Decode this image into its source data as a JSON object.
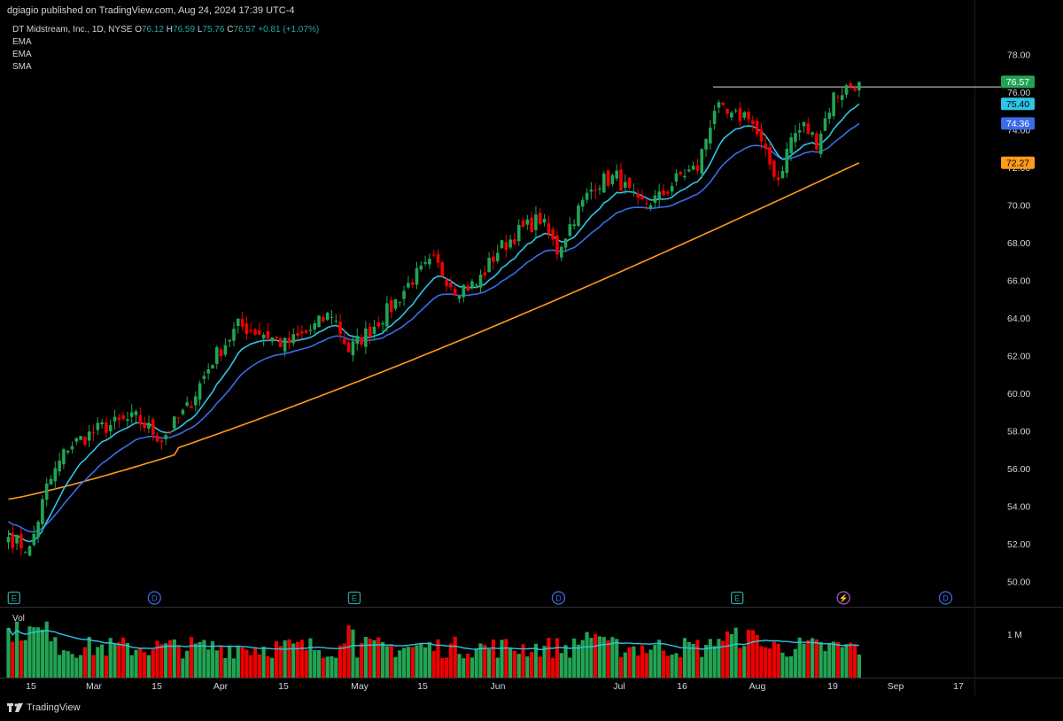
{
  "header": {
    "publisher": "dgiagio published on TradingView.com, Aug 24, 2024 17:39 UTC-4"
  },
  "legend": {
    "symbol": "DT Midstream, Inc., 1D, NYSE",
    "open_label": "O",
    "open": "76.12",
    "high_label": "H",
    "high": "76.59",
    "low_label": "L",
    "low": "75.76",
    "close_label": "C",
    "close": "76.57",
    "change": "+0.81 (+1.07%)",
    "indicators": [
      "EMA",
      "EMA",
      "SMA"
    ]
  },
  "volume_pane": {
    "label": "Vol",
    "scale_label": "1 M"
  },
  "footer": {
    "brand": "TradingView"
  },
  "colors": {
    "up": "#22a454",
    "down": "#f00000",
    "ema_fast": "#2ec4e6",
    "ema_slow": "#3a6be8",
    "sma": "#ff9b1a",
    "vol_ma": "#2ec4e6",
    "grid_text": "#d1d4dc",
    "price_tag": "#22a454"
  },
  "price_tags": [
    {
      "value": "76.57",
      "color": "#22a454"
    },
    {
      "value": "75.40",
      "color": "#2ec4e6"
    },
    {
      "value": "74.36",
      "color": "#3a6be8"
    },
    {
      "value": "72.27",
      "color": "#ff9b1a"
    }
  ],
  "events": [
    {
      "type": "E",
      "date_index": 1
    },
    {
      "type": "D",
      "date_index": 34
    },
    {
      "type": "E",
      "date_index": 81
    },
    {
      "type": "D",
      "date_index": 129
    },
    {
      "type": "E",
      "date_index": 171
    },
    {
      "type": "split-icon",
      "date_index": 196
    },
    {
      "type": "D",
      "date_index": 220
    }
  ],
  "chart_data": {
    "type": "candlestick",
    "title": "DT Midstream, Inc., 1D, NYSE",
    "y_axis_ticks": [
      "50.00",
      "52.00",
      "54.00",
      "56.00",
      "58.00",
      "60.00",
      "62.00",
      "64.00",
      "66.00",
      "68.00",
      "70.00",
      "72.00",
      "74.00",
      "76.00",
      "78.00"
    ],
    "x_axis_ticks": [
      "15",
      "Mar",
      "15",
      "Apr",
      "15",
      "May",
      "15",
      "Jun",
      "Jul",
      "16",
      "Aug",
      "19",
      "Sep",
      "17"
    ],
    "ylim": [
      49.3,
      79.2
    ],
    "resistance_level": 76.3,
    "series": [
      {
        "name": "EMA",
        "last": 75.4
      },
      {
        "name": "EMA",
        "last": 74.36
      },
      {
        "name": "SMA",
        "last": 72.27
      }
    ],
    "anchors": [
      [
        0,
        52.4
      ],
      [
        5,
        51.7
      ],
      [
        9,
        55.0
      ],
      [
        14,
        57.2
      ],
      [
        22,
        58.2
      ],
      [
        30,
        58.7
      ],
      [
        36,
        57.6
      ],
      [
        42,
        59.2
      ],
      [
        48,
        61.8
      ],
      [
        54,
        63.6
      ],
      [
        60,
        63.2
      ],
      [
        65,
        62.6
      ],
      [
        70,
        63.2
      ],
      [
        76,
        64.3
      ],
      [
        80,
        62.3
      ],
      [
        85,
        63.4
      ],
      [
        90,
        64.6
      ],
      [
        95,
        66.1
      ],
      [
        100,
        67.0
      ],
      [
        105,
        65.6
      ],
      [
        110,
        65.8
      ],
      [
        115,
        67.6
      ],
      [
        120,
        68.6
      ],
      [
        125,
        69.3
      ],
      [
        129,
        67.6
      ],
      [
        133,
        69.4
      ],
      [
        138,
        71.2
      ],
      [
        143,
        71.5
      ],
      [
        148,
        70.0
      ],
      [
        153,
        70.4
      ],
      [
        158,
        71.6
      ],
      [
        162,
        72.0
      ],
      [
        166,
        75.2
      ],
      [
        170,
        74.6
      ],
      [
        174,
        74.9
      ],
      [
        178,
        72.6
      ],
      [
        181,
        71.4
      ],
      [
        184,
        73.6
      ],
      [
        187,
        74.2
      ],
      [
        190,
        73.4
      ],
      [
        194,
        75.8
      ],
      [
        198,
        76.4
      ],
      [
        200,
        76.57
      ]
    ],
    "volume_max_label": "1 M"
  }
}
